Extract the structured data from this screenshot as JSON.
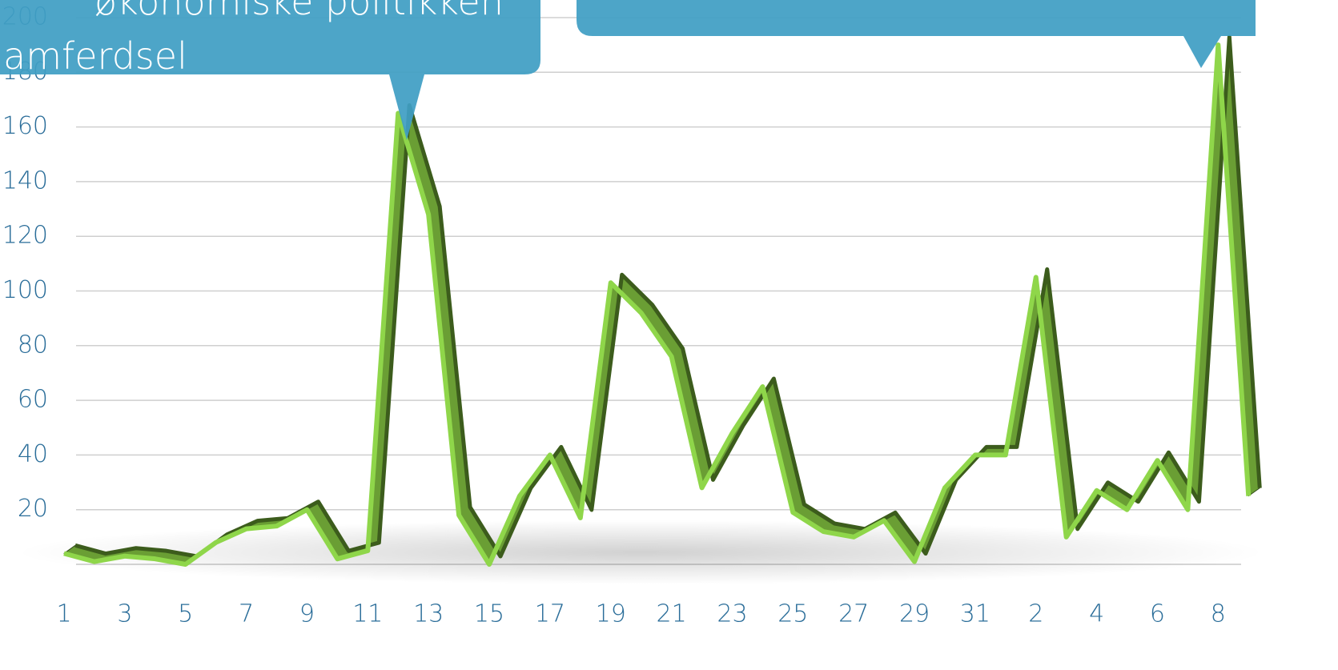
{
  "chart_data": {
    "type": "line",
    "annotations": [
      "økonomiske politikken",
      "amferdsel"
    ],
    "categories": [
      "1",
      null,
      "3",
      null,
      "5",
      null,
      "7",
      null,
      "9",
      null,
      "11",
      null,
      "13",
      null,
      "15",
      null,
      "17",
      null,
      "19",
      null,
      "21",
      null,
      "23",
      null,
      "25",
      null,
      "27",
      null,
      "29",
      null,
      "31",
      null,
      "2",
      null,
      "4",
      null,
      "6",
      null,
      "8",
      null
    ],
    "series": [
      {
        "color": "#6a9e34",
        "values": [
          4,
          1,
          3,
          2,
          0,
          8,
          13,
          14,
          20,
          2,
          5,
          165,
          128,
          18,
          0,
          25,
          40,
          17,
          103,
          92,
          76,
          28,
          48,
          65,
          19,
          12,
          10,
          16,
          1,
          28,
          40,
          40,
          105,
          10,
          27,
          20,
          38,
          20,
          190,
          25
        ]
      }
    ],
    "ylim": [
      0,
      200
    ],
    "yticks": [
      20,
      40,
      60,
      80,
      100,
      120,
      140,
      160,
      180,
      200
    ],
    "grid": true
  }
}
